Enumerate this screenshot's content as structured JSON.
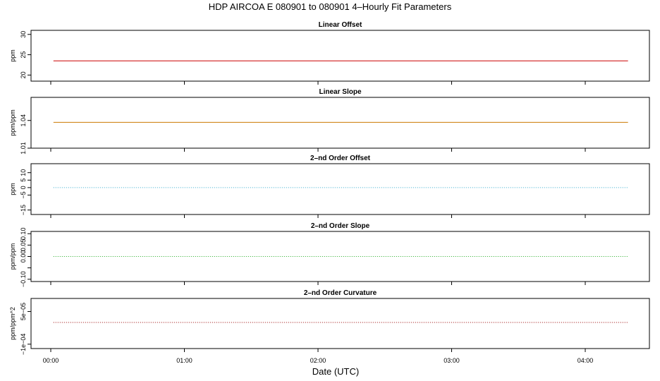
{
  "title": "HDP   AIRCOA E   080901 to 080901   4–Hourly Fit Parameters",
  "xlabel": "Date (UTC)",
  "x_ticks": [
    "00:00",
    "01:00",
    "02:00",
    "03:00",
    "04:00"
  ],
  "chart_data": [
    {
      "type": "line",
      "title": "Linear Offset",
      "ylabel": "ppm",
      "ylim": [
        18.5,
        31
      ],
      "yticks": [
        20,
        25,
        30
      ],
      "y_tick_labels": [
        "20",
        "25",
        "30"
      ],
      "xlim_hours": [
        -0.08,
        4.47
      ],
      "x": [
        0.02,
        4.32
      ],
      "values": [
        23.5,
        23.5
      ],
      "color": "#cc0000",
      "style": "solid"
    },
    {
      "type": "line",
      "title": "Linear Slope",
      "ylabel": "ppm/ppm",
      "ylim": [
        1.01,
        1.065
      ],
      "yticks": [
        1.01,
        1.04
      ],
      "y_tick_labels": [
        "1.01",
        "1.04"
      ],
      "xlim_hours": [
        -0.08,
        4.47
      ],
      "x": [
        0.02,
        4.32
      ],
      "values": [
        1.038,
        1.038
      ],
      "color": "#cc7a00",
      "style": "solid"
    },
    {
      "type": "line",
      "title": "2–nd Order Offset",
      "ylabel": "ppm",
      "ylim": [
        -18,
        16
      ],
      "yticks": [
        -15,
        -5,
        0,
        5,
        10
      ],
      "y_tick_labels": [
        "−15",
        "−5",
        "0",
        "5",
        "10"
      ],
      "xlim_hours": [
        -0.08,
        4.47
      ],
      "x": [
        0.02,
        4.32
      ],
      "values": [
        0,
        0
      ],
      "color": "#33aacc",
      "style": "dotted"
    },
    {
      "type": "line",
      "title": "2–nd Order Slope",
      "ylabel": "ppm/ppm",
      "ylim": [
        -0.11,
        0.11
      ],
      "yticks": [
        -0.1,
        -0.05,
        0,
        0.05,
        0.1
      ],
      "y_tick_labels": [
        "−0.10",
        "",
        "0.00",
        "0.05",
        "0.10"
      ],
      "xlim_hours": [
        -0.08,
        4.47
      ],
      "x": [
        0.02,
        4.32
      ],
      "values": [
        0,
        0
      ],
      "color": "#22aa22",
      "style": "dotted"
    },
    {
      "type": "line",
      "title": "2–nd Order Curvature",
      "ylabel": "ppm/ppm^2",
      "ylim": [
        -0.00012,
        0.00011
      ],
      "yticks": [
        -0.0001,
        5e-05
      ],
      "y_tick_labels": [
        "−1e−04",
        "5e−05"
      ],
      "xlim_hours": [
        -0.08,
        4.47
      ],
      "x": [
        0.02,
        4.32
      ],
      "values": [
        0,
        0
      ],
      "color": "#990000",
      "style": "dotted"
    }
  ]
}
